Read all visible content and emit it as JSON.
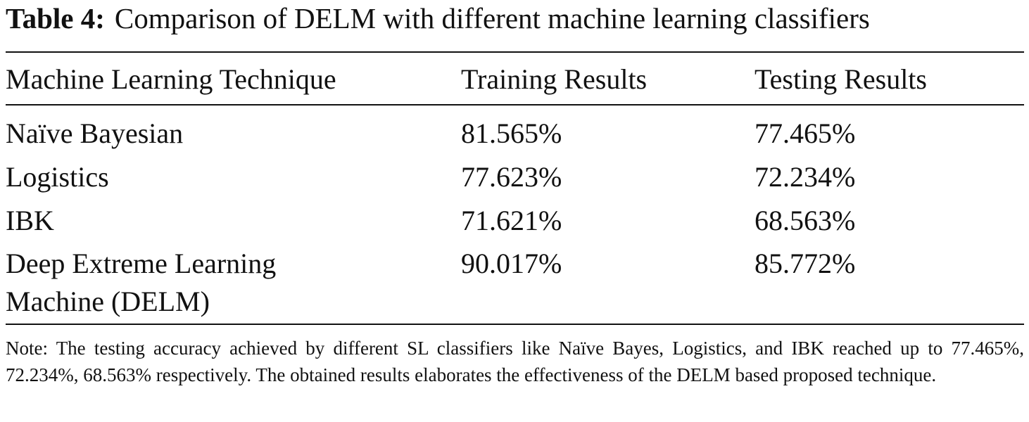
{
  "caption": {
    "label": "Table 4:",
    "text": "Comparison of DELM with different machine learning classifiers"
  },
  "table": {
    "header": [
      "Machine Learning Technique",
      "Training Results",
      "Testing Results"
    ],
    "rows": [
      [
        "Naïve Bayesian",
        "81.565%",
        "77.465%"
      ],
      [
        "Logistics",
        "77.623%",
        "72.234%"
      ],
      [
        "IBK",
        "71.621%",
        "68.563%"
      ],
      [
        "Deep Extreme Learning Machine (DELM)",
        "90.017%",
        "85.772%"
      ]
    ]
  },
  "note": "Note: The testing accuracy achieved by different SL classifiers like Naïve Bayes, Logistics, and IBK reached up to 77.465%, 72.234%, 68.563% respectively. The obtained results elaborates the effectiveness of the DELM based proposed technique."
}
